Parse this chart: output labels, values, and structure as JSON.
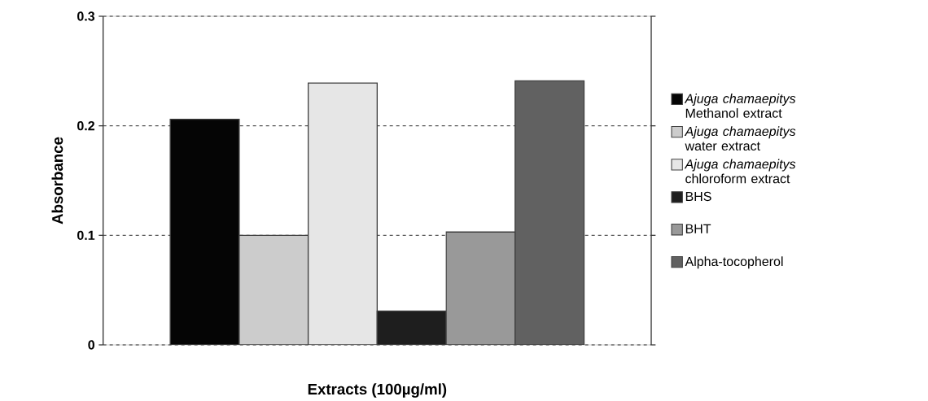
{
  "chart_data": {
    "type": "bar",
    "xlabel": "Extracts (100µg/ml)",
    "ylabel": "Absorbance",
    "categories": [
      null
    ],
    "series": [
      {
        "name": "*Ajuga chamaepitys* Methanol extract",
        "color": "#050505",
        "values": [
          0.206
        ]
      },
      {
        "name": "*Ajuga chamaepitys* water extract",
        "color": "#cccccc",
        "values": [
          0.1
        ]
      },
      {
        "name": "*Ajuga chamaepitys* chloroform extract",
        "color": "#e6e6e6",
        "values": [
          0.239
        ]
      },
      {
        "name": "BHS",
        "color": "#1e1e1e",
        "values": [
          0.031
        ]
      },
      {
        "name": "BHT",
        "color": "#999999",
        "values": [
          0.103
        ]
      },
      {
        "name": "Alpha-tocopherol",
        "color": "#616161",
        "values": [
          0.241
        ]
      }
    ],
    "ylim": [
      0,
      0.3
    ],
    "yticks": [
      0,
      0.1,
      0.2,
      0.3
    ],
    "grid": "y",
    "legend": "right"
  }
}
